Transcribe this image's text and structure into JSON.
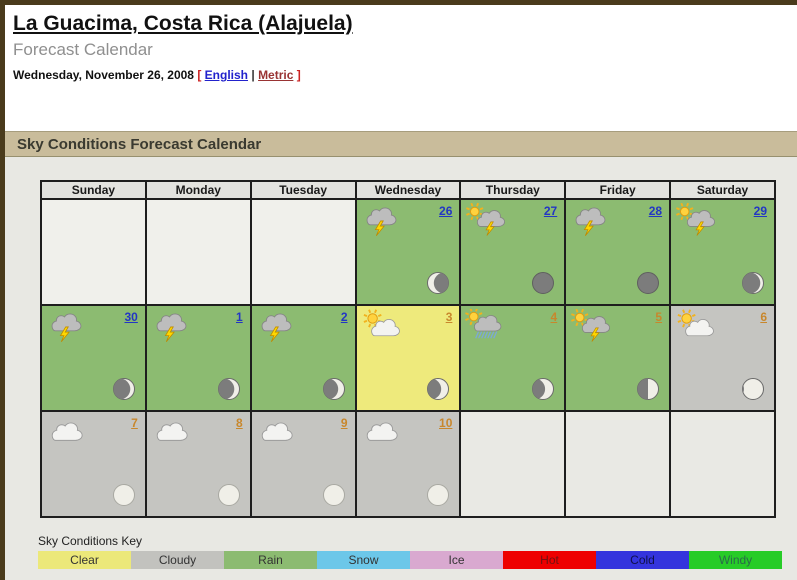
{
  "header": {
    "title": "La Guacima, Costa Rica (Alajuela)",
    "subtitle": "Forecast Calendar",
    "date_line": "Wednesday, November 26, 2008",
    "bracket_open": "[",
    "bracket_close": "]",
    "english_label": "English",
    "metric_label": "Metric",
    "separator": "|"
  },
  "section": {
    "title": "Sky Conditions Forecast Calendar"
  },
  "calendar": {
    "day_headers": [
      "Sunday",
      "Monday",
      "Tuesday",
      "Wednesday",
      "Thursday",
      "Friday",
      "Saturday"
    ],
    "rows": [
      {
        "cells": [
          {
            "empty": true
          },
          {
            "empty": true
          },
          {
            "empty": true
          },
          {
            "day": "26",
            "condition": "thunderstorm",
            "sky": "rain",
            "link_color": "blue",
            "moon": {
              "type": "crescent",
              "side": "left",
              "lit": 0.3
            }
          },
          {
            "day": "27",
            "condition": "sun-thunderstorm",
            "sky": "rain",
            "link_color": "blue",
            "moon": {
              "type": "new"
            }
          },
          {
            "day": "28",
            "condition": "thunderstorm",
            "sky": "rain",
            "link_color": "blue",
            "moon": {
              "type": "new"
            }
          },
          {
            "day": "29",
            "condition": "sun-thunderstorm",
            "sky": "rain",
            "link_color": "blue",
            "moon": {
              "type": "crescent",
              "side": "right",
              "lit": 0.15
            }
          }
        ]
      },
      {
        "cells": [
          {
            "day": "30",
            "condition": "thunderstorm",
            "sky": "rain",
            "link_color": "blue",
            "moon": {
              "type": "crescent",
              "side": "right",
              "lit": 0.2
            }
          },
          {
            "day": "1",
            "condition": "thunderstorm",
            "sky": "rain",
            "link_color": "blue",
            "moon": {
              "type": "crescent",
              "side": "right",
              "lit": 0.25
            }
          },
          {
            "day": "2",
            "condition": "thunderstorm",
            "sky": "rain",
            "link_color": "blue",
            "moon": {
              "type": "crescent",
              "side": "right",
              "lit": 0.3
            }
          },
          {
            "day": "3",
            "condition": "partly-cloudy",
            "sky": "clear",
            "link_color": "orange",
            "moon": {
              "type": "crescent",
              "side": "right",
              "lit": 0.35
            }
          },
          {
            "day": "4",
            "condition": "sun-rain",
            "sky": "rain",
            "link_color": "orange",
            "moon": {
              "type": "crescent",
              "side": "right",
              "lit": 0.4
            }
          },
          {
            "day": "5",
            "condition": "sun-thunderstorm",
            "sky": "rain",
            "link_color": "orange",
            "moon": {
              "type": "half",
              "side": "right"
            }
          },
          {
            "day": "6",
            "condition": "partly-cloudy",
            "sky": "cloudy",
            "link_color": "orange",
            "moon": {
              "type": "crescent",
              "side": "right",
              "lit": 0.93
            }
          }
        ]
      },
      {
        "cells": [
          {
            "day": "7",
            "condition": "cloudy",
            "sky": "cloudy",
            "link_color": "orange",
            "moon": {
              "type": "full"
            }
          },
          {
            "day": "8",
            "condition": "cloudy",
            "sky": "cloudy",
            "link_color": "orange",
            "moon": {
              "type": "full"
            }
          },
          {
            "day": "9",
            "condition": "cloudy",
            "sky": "cloudy",
            "link_color": "orange",
            "moon": {
              "type": "full"
            }
          },
          {
            "day": "10",
            "condition": "cloudy",
            "sky": "cloudy",
            "link_color": "orange",
            "moon": {
              "type": "full"
            }
          },
          {
            "empty": true
          },
          {
            "empty": true
          },
          {
            "empty": true
          }
        ]
      }
    ]
  },
  "key": {
    "label": "Sky Conditions Key",
    "items": [
      {
        "label": "Clear",
        "bg": "#ece87a",
        "text": "#333333"
      },
      {
        "label": "Cloudy",
        "bg": "#c2c2be",
        "text": "#333333"
      },
      {
        "label": "Rain",
        "bg": "#8cbb71",
        "text": "#333333"
      },
      {
        "label": "Snow",
        "bg": "#6cc7e9",
        "text": "#333333"
      },
      {
        "label": "Ice",
        "bg": "#d9a9d0",
        "text": "#333333"
      },
      {
        "label": "Hot",
        "bg": "#ee0000",
        "text": "#6e1212"
      },
      {
        "label": "Cold",
        "bg": "#3434dd",
        "text": "#10104a"
      },
      {
        "label": "Windy",
        "bg": "#27cc27",
        "text": "#2a6a4a"
      }
    ]
  },
  "colors": {
    "english_link": "#2222cc",
    "metric_link": "#993333",
    "bracket": "#cc2222",
    "day_link_blue": "#2336c4",
    "day_link_orange": "#c8872c",
    "cell_rain": "#8cbb71",
    "cell_clear": "#eeea7c",
    "cell_cloudy": "#c5c5c1",
    "cell_empty_top": "#f0f0eb",
    "cell_empty_bottom": "#e9e9e4",
    "moon_dark": "#7c7c7c",
    "moon_light": "#f0efe8"
  }
}
